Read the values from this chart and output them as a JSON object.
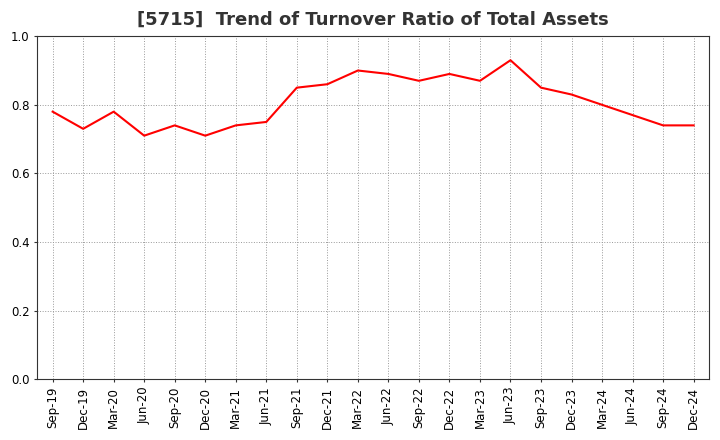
{
  "title": "[5715]  Trend of Turnover Ratio of Total Assets",
  "labels": [
    "Sep-19",
    "Dec-19",
    "Mar-20",
    "Jun-20",
    "Sep-20",
    "Dec-20",
    "Mar-21",
    "Jun-21",
    "Sep-21",
    "Dec-21",
    "Mar-22",
    "Jun-22",
    "Sep-22",
    "Dec-22",
    "Mar-23",
    "Jun-23",
    "Sep-23",
    "Dec-23",
    "Mar-24",
    "Jun-24",
    "Sep-24",
    "Dec-24"
  ],
  "values": [
    0.78,
    0.73,
    0.78,
    0.71,
    0.74,
    0.71,
    0.74,
    0.75,
    0.85,
    0.86,
    0.9,
    0.89,
    0.87,
    0.89,
    0.87,
    0.93,
    0.85,
    0.83,
    0.8,
    0.77,
    0.74,
    0.74
  ],
  "line_color": "#ff0000",
  "line_width": 1.5,
  "ylim": [
    0.0,
    1.0
  ],
  "yticks": [
    0.0,
    0.2,
    0.4,
    0.6,
    0.8,
    1.0
  ],
  "grid_color": "#999999",
  "background_color": "#ffffff",
  "title_fontsize": 13,
  "tick_fontsize": 8.5,
  "fig_width": 7.2,
  "fig_height": 4.4,
  "dpi": 100
}
